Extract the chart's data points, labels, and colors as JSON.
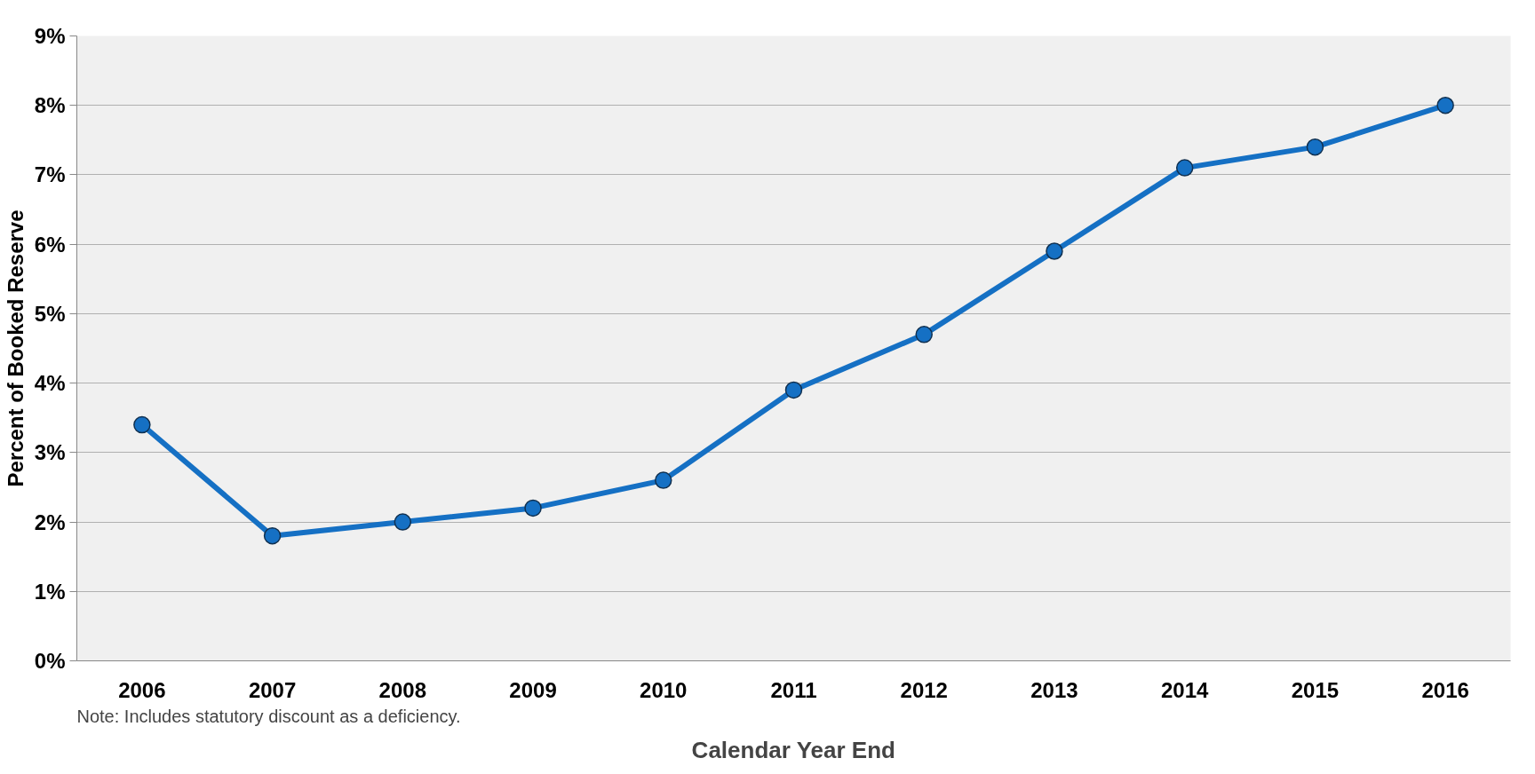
{
  "chart_data": {
    "type": "line",
    "xlabel": "Calendar Year End",
    "ylabel": "Percent of Booked Reserve",
    "categories": [
      "2006",
      "2007",
      "2008",
      "2009",
      "2010",
      "2011",
      "2012",
      "2013",
      "2014",
      "2015",
      "2016"
    ],
    "series": [
      {
        "color": "#1570c4",
        "values": [
          3.4,
          1.8,
          2.0,
          2.2,
          2.6,
          3.9,
          4.7,
          5.9,
          7.1,
          7.4,
          8.0
        ]
      }
    ],
    "ylim": [
      0,
      9
    ],
    "yticks": [
      {
        "value": 0,
        "label": "0%"
      },
      {
        "value": 1,
        "label": "1%"
      },
      {
        "value": 2,
        "label": "2%"
      },
      {
        "value": 3,
        "label": "3%"
      },
      {
        "value": 4,
        "label": "4%"
      },
      {
        "value": 5,
        "label": "5%"
      },
      {
        "value": 6,
        "label": "6%"
      },
      {
        "value": 7,
        "label": "7%"
      },
      {
        "value": 8,
        "label": "8%"
      },
      {
        "value": 9,
        "label": "9%"
      }
    ],
    "grid": "y",
    "marker": "circle",
    "line_style": "solid",
    "annotations": [
      "Note: Includes statutory discount as a deficiency."
    ]
  }
}
